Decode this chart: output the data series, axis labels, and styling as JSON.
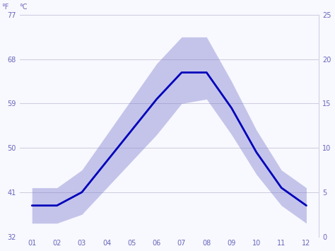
{
  "months": [
    1,
    2,
    3,
    4,
    5,
    6,
    7,
    8,
    9,
    10,
    11,
    12
  ],
  "month_labels": [
    "01",
    "02",
    "03",
    "04",
    "05",
    "06",
    "07",
    "08",
    "09",
    "10",
    "11",
    "12"
  ],
  "avg_temp_f": [
    38.3,
    38.3,
    41.0,
    47.3,
    53.6,
    59.9,
    65.3,
    65.3,
    58.1,
    49.1,
    41.9,
    38.3
  ],
  "max_temp_f": [
    41.9,
    41.9,
    45.5,
    52.7,
    59.9,
    67.1,
    72.5,
    72.5,
    63.5,
    53.6,
    45.5,
    41.9
  ],
  "min_temp_f": [
    34.7,
    34.7,
    36.5,
    41.9,
    47.3,
    52.7,
    59.0,
    59.9,
    52.7,
    44.6,
    38.3,
    34.7
  ],
  "line_color": "#0000bb",
  "band_color": "#7777cc",
  "band_alpha": 0.4,
  "background_color": "#f8f8ff",
  "grid_color": "#ccccdd",
  "axis_color": "#6666bb",
  "ylim_f": [
    32,
    77
  ],
  "yticks_f": [
    32,
    41,
    50,
    59,
    68,
    77
  ],
  "ytick_labels_f": [
    "32",
    "41",
    "50",
    "59",
    "68",
    "77"
  ],
  "yticks_c_pos_f": [
    32,
    41,
    50,
    59,
    68,
    77
  ],
  "ytick_labels_c": [
    "0",
    "5",
    "10",
    "15",
    "20",
    "25"
  ],
  "ylabel_left": "°F",
  "ylabel_right": "°C",
  "figsize": [
    4.74,
    3.55
  ],
  "dpi": 100
}
